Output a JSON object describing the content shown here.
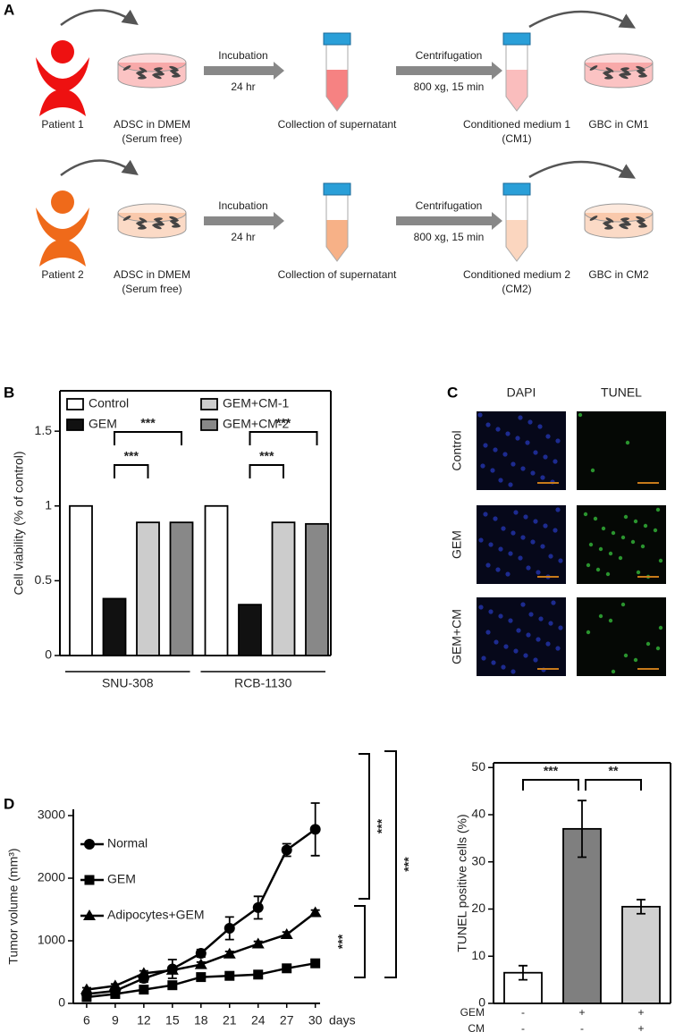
{
  "panel_labels": [
    "A",
    "B",
    "C",
    "D"
  ],
  "workflow": [
    {
      "patient": "Patient 1",
      "cells": [
        "ADSC in DMEM",
        "(Serum free)"
      ],
      "step1": "Incubation",
      "step1_time": "24 hr",
      "supernatant": "Collection of supernatant",
      "step2": "Centrifugation",
      "step2_detail": "800 xg, 15 min",
      "medium": [
        "Conditioned medium 1",
        "(CM1)"
      ],
      "culture": "GBC in CM1",
      "color": "#ee1111"
    },
    {
      "patient": "Patient 2",
      "cells": [
        "ADSC in DMEM",
        "(Serum free)"
      ],
      "step1": "Incubation",
      "step1_time": "24 hr",
      "supernatant": "Collection of supernatant",
      "step2": "Centrifugation",
      "step2_detail": "800 xg, 15 min",
      "medium": [
        "Conditioned medium 2",
        "(CM2)"
      ],
      "culture": "GBC in CM2",
      "color": "#ef6a1a"
    }
  ],
  "microscopy": {
    "columns": [
      "DAPI",
      "TUNEL"
    ],
    "rows": [
      "Control",
      "GEM",
      "GEM+CM"
    ]
  },
  "chart_data": [
    {
      "type": "bar",
      "ylabel": "Cell viability (% of control)",
      "categories": [
        "SNU-308",
        "RCB-1130"
      ],
      "series": [
        {
          "name": "Control",
          "color": "#ffffff",
          "values": [
            1.0,
            1.0
          ]
        },
        {
          "name": "GEM",
          "color": "#111111",
          "values": [
            0.38,
            0.34
          ]
        },
        {
          "name": "GEM+CM-1",
          "color": "#cccccc",
          "values": [
            0.89,
            0.89
          ]
        },
        {
          "name": "GEM+CM-2",
          "color": "#888888",
          "values": [
            0.89,
            0.88
          ]
        }
      ],
      "ylim": [
        0,
        1.77
      ],
      "yticks": [
        0,
        0.5,
        1,
        1.5
      ],
      "annotations": [
        "***",
        "***",
        "***",
        "***"
      ],
      "legend": "top"
    },
    {
      "type": "line",
      "ylabel": "Tumor volume (mm³)",
      "xlabel": "days",
      "x": [
        6,
        9,
        12,
        15,
        18,
        21,
        24,
        27,
        30
      ],
      "series": [
        {
          "name": "Normal",
          "color": "#000000",
          "marker": "circle",
          "values": [
            150,
            200,
            400,
            550,
            800,
            1200,
            1530,
            2450,
            2780
          ],
          "errors": [
            30,
            40,
            60,
            150,
            60,
            180,
            180,
            100,
            420
          ]
        },
        {
          "name": "GEM",
          "color": "#000000",
          "marker": "square",
          "values": [
            100,
            150,
            220,
            290,
            420,
            440,
            460,
            560,
            640
          ],
          "errors": [
            20,
            30,
            40,
            40,
            40,
            40,
            40,
            40,
            60
          ]
        },
        {
          "name": "Adipocytes+GEM",
          "color": "#000000",
          "marker": "triangle",
          "values": [
            220,
            280,
            480,
            530,
            620,
            790,
            950,
            1100,
            1450
          ],
          "errors": [
            30,
            30,
            40,
            40,
            40,
            40,
            40,
            40,
            40
          ]
        }
      ],
      "xlim": [
        4.6,
        30.5
      ],
      "xticks": [
        6,
        9,
        12,
        15,
        18,
        21,
        24,
        27,
        30
      ],
      "ylim": [
        0,
        3100
      ],
      "yticks": [
        0,
        1000,
        2000,
        3000
      ],
      "annotations": [
        "***",
        "***",
        "***"
      ],
      "legend": "top-left"
    },
    {
      "type": "bar",
      "ylabel": "TUNEL positive cells (%)",
      "values": [
        6.5,
        37,
        20.5
      ],
      "errors": [
        1.5,
        6,
        1.5
      ],
      "colors": [
        "#ffffff",
        "#7f7f7f",
        "#d0d0d0"
      ],
      "condition_table": [
        {
          "label": "GEM",
          "values": [
            "-",
            "+",
            "+"
          ]
        },
        {
          "label": "CM",
          "values": [
            "-",
            "-",
            "+"
          ]
        }
      ],
      "ylim": [
        0,
        51
      ],
      "yticks": [
        0,
        10,
        20,
        30,
        40,
        50
      ],
      "annotations": [
        "***",
        "**"
      ]
    }
  ]
}
